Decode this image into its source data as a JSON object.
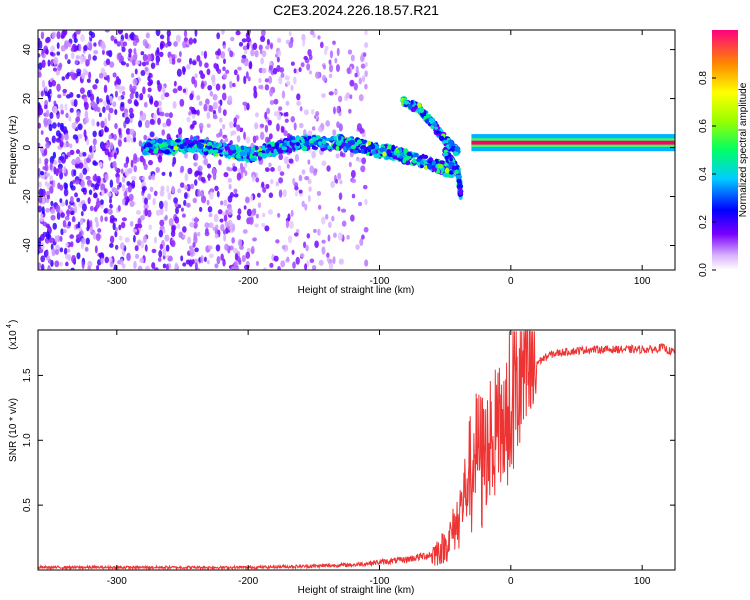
{
  "title": "C2E3.2024.226.18.57.R21",
  "colors": {
    "snr_line": "#ee3333",
    "axis": "#000000"
  },
  "chart_data": [
    {
      "type": "heatmap",
      "xlabel": "Height of straight line (km)",
      "ylabel": "Frequency (Hz)",
      "xlim": [
        -360,
        125
      ],
      "ylim": [
        -50,
        48
      ],
      "x_ticks": [
        -300,
        -200,
        -100,
        0,
        100
      ],
      "y_ticks": [
        -40,
        -20,
        0,
        20,
        40
      ],
      "colorbar": {
        "label": "Normalized spectral amplitude",
        "range": [
          0,
          1
        ],
        "ticks": [
          "0.0",
          "0.2",
          "0.4",
          "0.6",
          "0.8"
        ]
      },
      "features": [
        {
          "kind": "noise",
          "x_range": [
            -360,
            -110
          ],
          "y_range": [
            -50,
            48
          ]
        },
        {
          "kind": "band",
          "x": [
            -280,
            -240,
            -200,
            -160,
            -130,
            -100,
            -70,
            -45
          ],
          "y": [
            0,
            1,
            -3,
            2,
            2,
            -1,
            -5,
            -10
          ]
        },
        {
          "kind": "branch",
          "x": [
            -82,
            -70,
            -60,
            -50,
            -40
          ],
          "y": [
            19,
            16,
            10,
            3,
            -2
          ]
        },
        {
          "kind": "branch",
          "x": [
            -50,
            -45,
            -40,
            -38
          ],
          "y": [
            -2,
            -6,
            -10,
            -20
          ]
        },
        {
          "kind": "carrier",
          "x_range": [
            -30,
            125
          ],
          "y": 2
        }
      ]
    },
    {
      "type": "line",
      "xlabel": "Height of straight line (km)",
      "ylabel": "SNR (10 * v/v)",
      "y_scale_note": "(x10",
      "y_scale_exp": "4",
      "xlim": [
        -360,
        125
      ],
      "ylim": [
        0,
        1.85
      ],
      "x_ticks": [
        -300,
        -200,
        -100,
        0,
        100
      ],
      "y_ticks": [
        "0.5",
        "1.0",
        "1.5"
      ],
      "series": [
        {
          "x": [
            -360,
            -300,
            -250,
            -200,
            -150,
            -120,
            -100,
            -80,
            -60,
            -50,
            -45,
            -40,
            -35,
            -30,
            -25,
            -20,
            -15,
            -10,
            -5,
            0,
            10,
            20,
            30,
            40,
            60,
            80,
            100,
            110,
            115,
            120,
            125
          ],
          "y": [
            0.02,
            0.02,
            0.02,
            0.02,
            0.03,
            0.04,
            0.06,
            0.08,
            0.12,
            0.18,
            0.28,
            0.4,
            0.6,
            0.85,
            0.95,
            0.9,
            1.0,
            1.05,
            1.15,
            1.3,
            1.5,
            1.6,
            1.66,
            1.68,
            1.7,
            1.7,
            1.7,
            1.7,
            1.72,
            1.69,
            1.68
          ]
        }
      ]
    }
  ]
}
